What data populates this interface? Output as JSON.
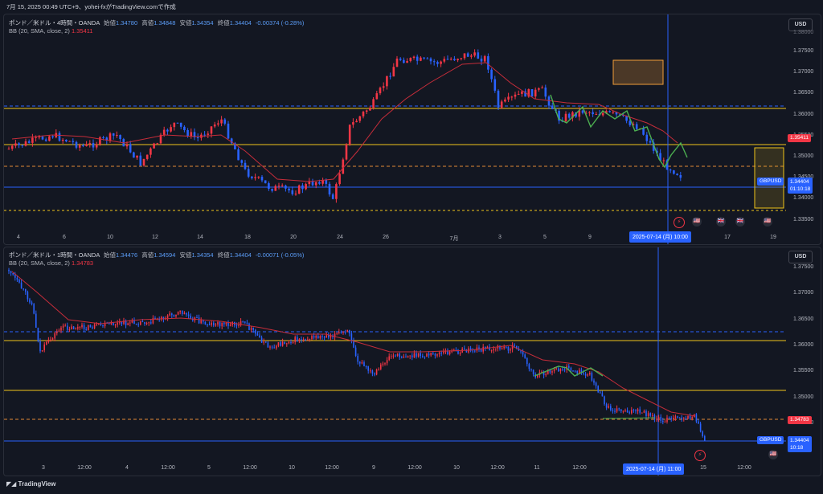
{
  "title_bar": "7月 15, 2025 00:49 UTC+9、yohei-fxがTradingView.comで作成",
  "logo_text": "TradingView",
  "colors": {
    "up": "#f23645",
    "down": "#2962ff",
    "bb": "#c62d3a",
    "yellow": "#f0c419",
    "orange": "#e08a35",
    "blue_dash": "#2962ff",
    "green": "#4caf50",
    "rect": "#f29d38"
  },
  "chart_top": {
    "symbol": "ポンド／米ドル・4時間・OANDA",
    "open_label": "始値",
    "open": "1.34780",
    "high_label": "高値",
    "high": "1.34848",
    "low_label": "安値",
    "low": "1.34354",
    "close_label": "終値",
    "close": "1.34404",
    "change": "-0.00374 (-0.28%)",
    "bb_label": "BB (20, SMA, close, 2)",
    "bb_value": "1.35411",
    "currency": "USD",
    "y_ticks": [
      "1.37500",
      "1.37000",
      "1.36500",
      "1.36000",
      "1.35500",
      "1.35000",
      "1.34500",
      "1.34000",
      "1.33500"
    ],
    "y_top_cut": "1.38000",
    "x_ticks": [
      "4",
      "6",
      "10",
      "12",
      "14",
      "18",
      "20",
      "24",
      "26",
      "7月",
      "3",
      "5",
      "9",
      "17",
      "19"
    ],
    "price_badge": {
      "symbol": "GBPUSD",
      "price": "1.34404",
      "countdown": "01:10:18"
    },
    "bb_badge": "1.35411",
    "cursor_time": "2025-07-14 (月)  10:00"
  },
  "chart_bottom": {
    "symbol": "ポンド／米ドル・1時間・OANDA",
    "open_label": "始値",
    "open": "1.34476",
    "high_label": "高値",
    "high": "1.34594",
    "low_label": "安値",
    "low": "1.34354",
    "close_label": "終値",
    "close": "1.34404",
    "change": "-0.00071 (-0.05%)",
    "bb_label": "BB (20, SMA, close, 2)",
    "bb_value": "1.34783",
    "currency": "USD",
    "y_ticks": [
      "1.37500",
      "1.37000",
      "1.36500",
      "1.36000",
      "1.35500",
      "1.35000",
      "1.34500"
    ],
    "x_ticks": [
      "3",
      "12:00",
      "4",
      "12:00",
      "5",
      "12:00",
      "10",
      "12:00",
      "9",
      "12:00",
      "10",
      "12:00",
      "11",
      "12:00",
      "15",
      "12:00"
    ],
    "price_badge": {
      "symbol": "GBPUSD",
      "price": "1.34404",
      "countdown": "10:18"
    },
    "bb_badge": "1.34783",
    "cursor_time": "2025-07-14 (月)  11:00"
  }
}
